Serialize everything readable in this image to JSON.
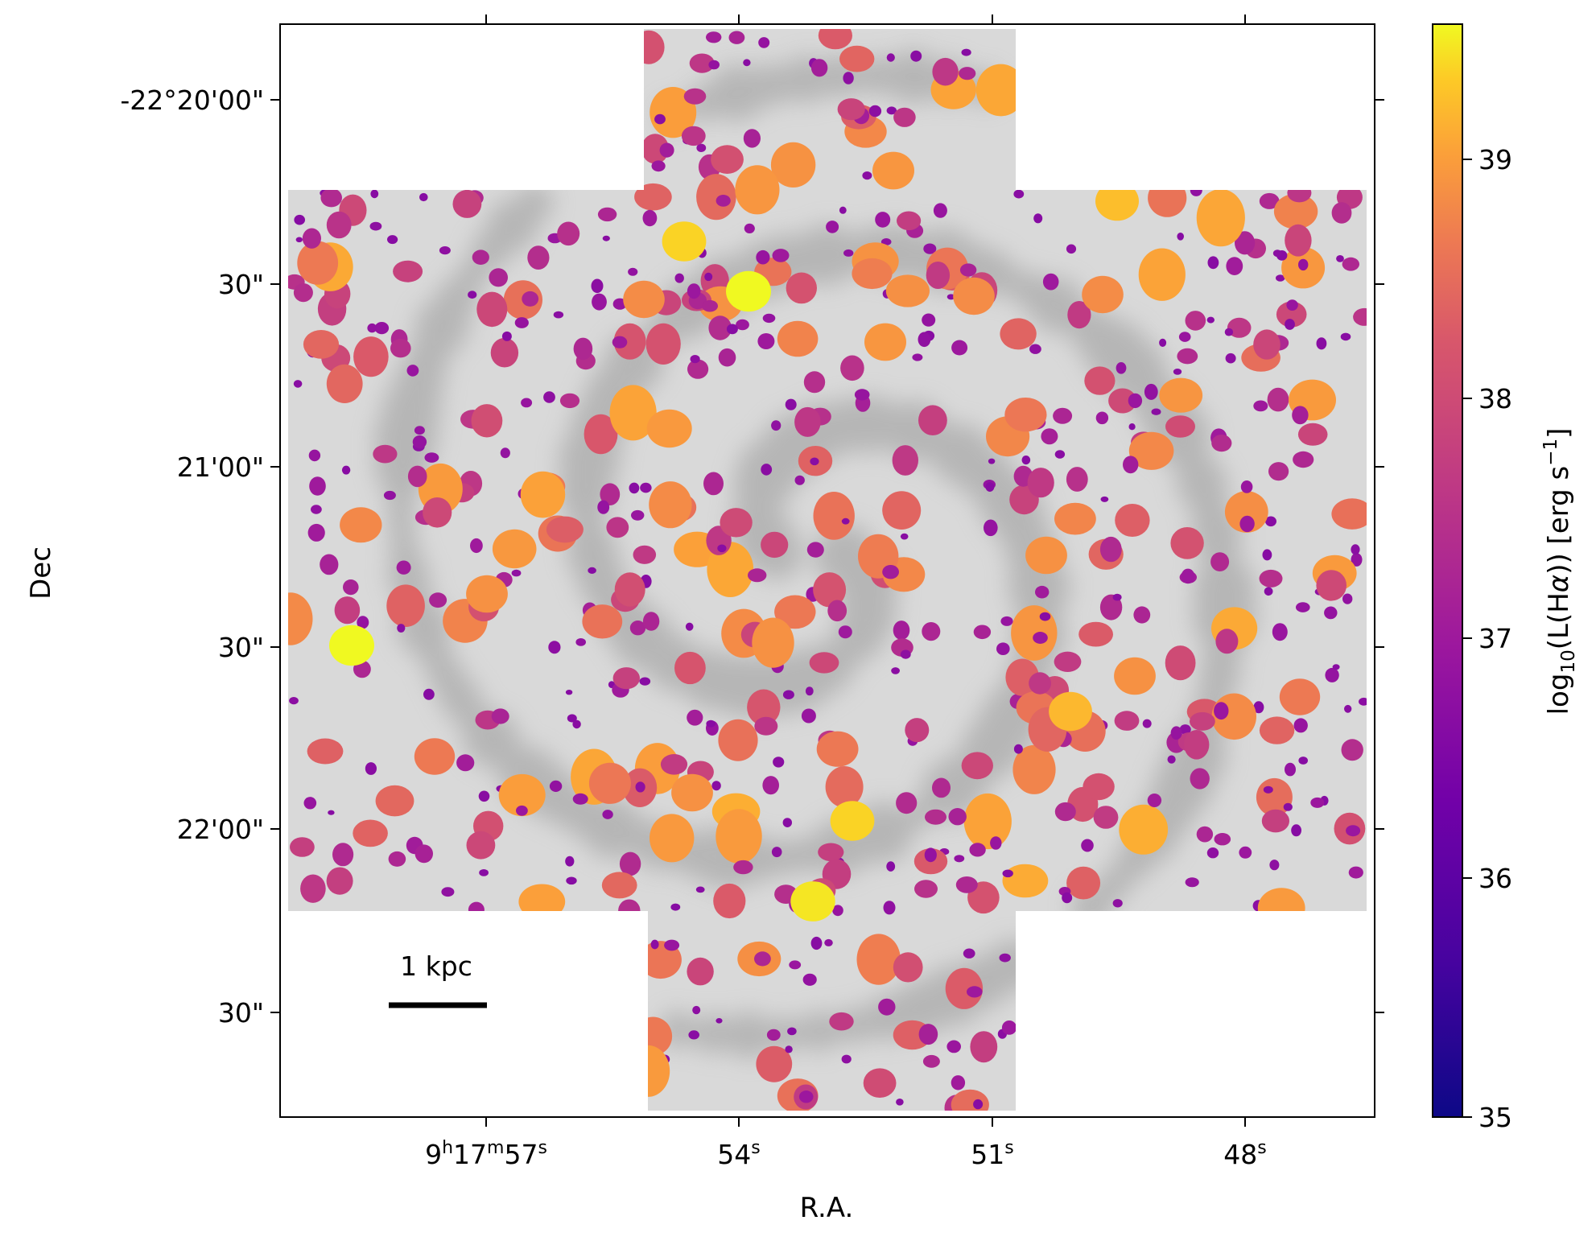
{
  "figure": {
    "ra_axis": {
      "label": "R.A.",
      "ticks": [
        {
          "main": "9",
          "h": "h",
          "m_num": "17",
          "m": "m",
          "s_num": "57",
          "s": "s"
        },
        {
          "s_num": "54",
          "s": "s"
        },
        {
          "s_num": "51",
          "s": "s"
        },
        {
          "s_num": "48",
          "s": "s"
        }
      ]
    },
    "dec_axis": {
      "label": "Dec",
      "ticks": [
        "-22°20'00\"",
        "30\"",
        "21'00\"",
        "30\"",
        "22'00\"",
        "30\""
      ]
    },
    "colorbar": {
      "label_prefix": "log",
      "label_sub": "10",
      "label_mid": "(L(H",
      "label_alpha": "α",
      "label_mid2": ")) [erg s",
      "label_sup": "−1",
      "label_end": "]",
      "ticks": [
        "35",
        "36",
        "37",
        "38",
        "39"
      ],
      "range": [
        35,
        39.5
      ],
      "cmap": "plasma"
    },
    "scalebar": {
      "label": "1 kpc"
    },
    "colors": {
      "background_map": "#c8c8c8",
      "frame": "#000000"
    }
  }
}
